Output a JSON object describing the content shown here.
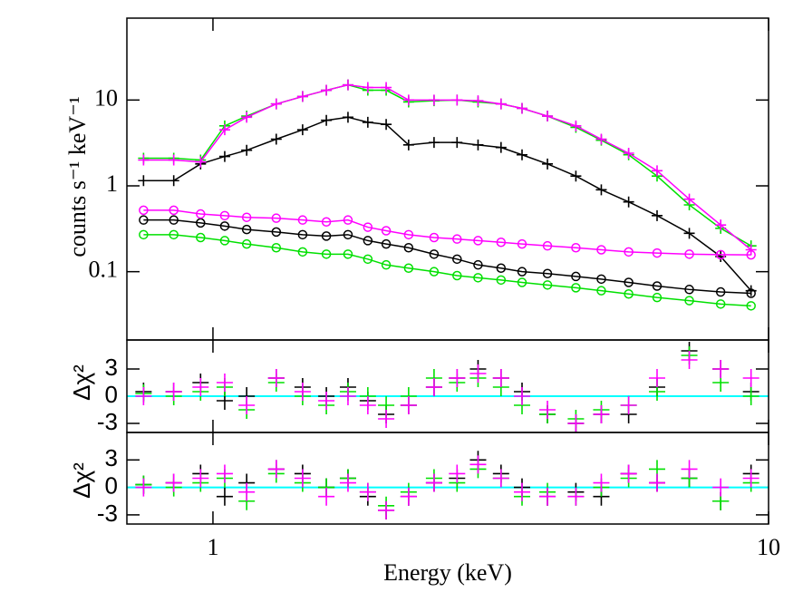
{
  "chart_data": [
    {
      "type": "spectrum",
      "ylabel": "counts s⁻¹ keV⁻¹",
      "xlog": true,
      "ylog": true,
      "xlim": [
        0.7,
        10
      ],
      "ylim": [
        0.016,
        90
      ],
      "yticks": [
        0.1,
        1,
        10
      ],
      "x": [
        0.75,
        0.85,
        0.95,
        1.05,
        1.15,
        1.3,
        1.45,
        1.6,
        1.75,
        1.9,
        2.05,
        2.25,
        2.5,
        2.75,
        3.0,
        3.3,
        3.6,
        4.0,
        4.5,
        5.0,
        5.6,
        6.3,
        7.2,
        8.2,
        9.3
      ],
      "series": [
        {
          "color": "#000000",
          "marker": "cross",
          "values": [
            1.15,
            1.15,
            1.8,
            2.2,
            2.6,
            3.5,
            4.5,
            5.8,
            6.3,
            5.5,
            5.2,
            3.0,
            3.2,
            3.2,
            3.0,
            2.8,
            2.3,
            1.8,
            1.3,
            0.9,
            0.65,
            0.45,
            0.28,
            0.15,
            0.06
          ]
        },
        {
          "color": "#00e000",
          "marker": "cross",
          "values": [
            2.1,
            2.1,
            2.0,
            5.0,
            6.5,
            9,
            11,
            13,
            15,
            13,
            13,
            9.5,
            9.8,
            10,
            9.5,
            9,
            8,
            6.5,
            4.8,
            3.4,
            2.3,
            1.3,
            0.6,
            0.32,
            0.2
          ]
        },
        {
          "color": "#ff00ff",
          "marker": "cross",
          "values": [
            2.0,
            2.0,
            1.9,
            4.5,
            6.3,
            9,
            11,
            13,
            15,
            14,
            14,
            10,
            10,
            10,
            9.8,
            9,
            8,
            6.5,
            5,
            3.5,
            2.4,
            1.5,
            0.7,
            0.35,
            0.18
          ]
        },
        {
          "color": "#000000",
          "marker": "circle",
          "values": [
            0.4,
            0.4,
            0.37,
            0.34,
            0.31,
            0.29,
            0.27,
            0.26,
            0.27,
            0.23,
            0.21,
            0.19,
            0.16,
            0.14,
            0.12,
            0.11,
            0.1,
            0.095,
            0.088,
            0.082,
            0.075,
            0.068,
            0.062,
            0.058,
            0.056
          ]
        },
        {
          "color": "#ff00ff",
          "marker": "circle",
          "values": [
            0.52,
            0.52,
            0.47,
            0.45,
            0.43,
            0.42,
            0.4,
            0.38,
            0.4,
            0.33,
            0.3,
            0.27,
            0.25,
            0.24,
            0.23,
            0.22,
            0.21,
            0.2,
            0.19,
            0.18,
            0.17,
            0.165,
            0.16,
            0.158,
            0.157
          ]
        },
        {
          "color": "#00e000",
          "marker": "circle",
          "values": [
            0.27,
            0.27,
            0.25,
            0.23,
            0.21,
            0.19,
            0.17,
            0.16,
            0.16,
            0.14,
            0.12,
            0.11,
            0.1,
            0.09,
            0.085,
            0.08,
            0.075,
            0.07,
            0.065,
            0.06,
            0.055,
            0.05,
            0.046,
            0.042,
            0.04
          ]
        }
      ]
    },
    {
      "type": "residual",
      "ylabel": "Δχ²",
      "xlog": true,
      "xlim": [
        0.7,
        10
      ],
      "ylim": [
        -4,
        6.2
      ],
      "yticks": [
        -3,
        0,
        3
      ],
      "reference_line": {
        "value": 0,
        "color": "#00ffff"
      },
      "x": [
        0.75,
        0.85,
        0.95,
        1.05,
        1.15,
        1.3,
        1.45,
        1.6,
        1.75,
        1.9,
        2.05,
        2.25,
        2.5,
        2.75,
        3.0,
        3.3,
        3.6,
        4.0,
        4.5,
        5.0,
        5.6,
        6.3,
        7.2,
        8.2,
        9.3
      ],
      "series": [
        {
          "color": "#000000",
          "values": [
            0.5,
            0.5,
            1.5,
            -0.5,
            0,
            2,
            1,
            0,
            1,
            -0.5,
            -2,
            -1,
            1,
            2,
            3,
            2,
            0.5,
            -2,
            -3,
            -2,
            -2,
            1,
            5,
            3,
            0.5
          ]
        },
        {
          "color": "#00e000",
          "values": [
            0.3,
            0,
            0.5,
            1,
            -1.5,
            1.5,
            0,
            -1,
            0.5,
            0,
            -1,
            0,
            2,
            1.5,
            2,
            1,
            -1,
            -2,
            -2.5,
            -1.5,
            -1,
            0.5,
            4.5,
            1.5,
            0
          ]
        },
        {
          "color": "#ff00ff",
          "values": [
            0,
            0.5,
            1,
            1.5,
            -1,
            2,
            0.5,
            -0.5,
            0,
            -1,
            -2.5,
            -1,
            1,
            2,
            2.5,
            2,
            0,
            -1.5,
            -3,
            -2,
            -1,
            2,
            4,
            3,
            2
          ]
        }
      ]
    },
    {
      "type": "residual",
      "ylabel": "Δχ²",
      "xlabel": "Energy (keV)",
      "xlog": true,
      "xlim": [
        0.7,
        10
      ],
      "xticks": [
        1,
        10
      ],
      "ylim": [
        -4,
        6.0
      ],
      "yticks": [
        -3,
        0,
        3
      ],
      "reference_line": {
        "value": 0,
        "color": "#00ffff"
      },
      "x": [
        0.75,
        0.85,
        0.95,
        1.05,
        1.15,
        1.3,
        1.45,
        1.6,
        1.75,
        1.9,
        2.05,
        2.25,
        2.5,
        2.75,
        3.0,
        3.3,
        3.6,
        4.0,
        4.5,
        5.0,
        5.6,
        6.3,
        7.2,
        8.2,
        9.3
      ],
      "series": [
        {
          "color": "#000000",
          "values": [
            0.3,
            0.5,
            1.5,
            -1,
            0.5,
            2,
            1.5,
            0,
            1,
            -1,
            -2.5,
            -1,
            0.5,
            1,
            3,
            1.5,
            0,
            -1,
            -0.5,
            -1,
            1.5,
            0.5,
            1,
            -1.5,
            1.5
          ]
        },
        {
          "color": "#00e000",
          "values": [
            0.3,
            0,
            0.5,
            1,
            -1.5,
            1.5,
            0.5,
            0,
            1,
            -0.5,
            -2,
            -0.5,
            1,
            0.5,
            2,
            1,
            -1,
            -0.5,
            -1,
            0,
            1,
            2,
            1,
            -1.5,
            0.5
          ]
        },
        {
          "color": "#ff00ff",
          "values": [
            0,
            0.5,
            1,
            1.5,
            -0.5,
            2,
            1,
            -1,
            0.5,
            -0.5,
            -2.5,
            -1,
            0.5,
            1.5,
            2.5,
            1,
            -0.5,
            -1,
            -1,
            0.5,
            1.5,
            0.5,
            2,
            0,
            1
          ]
        }
      ]
    }
  ]
}
